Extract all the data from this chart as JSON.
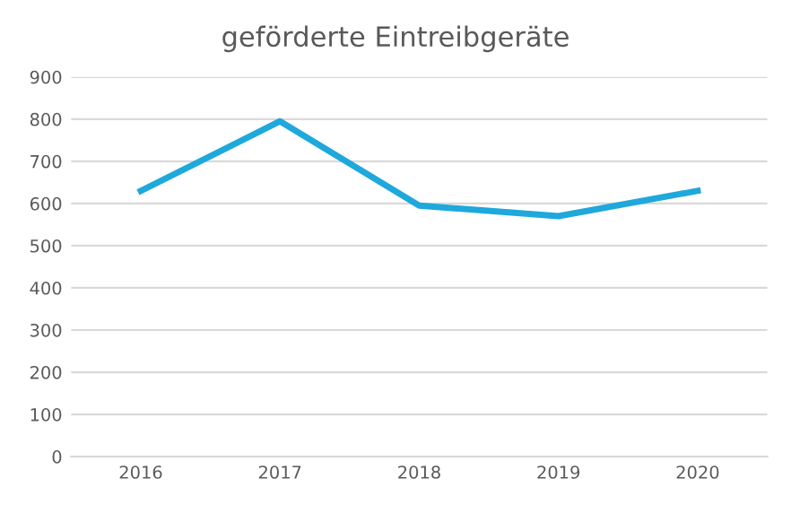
{
  "chart_data": {
    "type": "line",
    "title": "geförderte Eintreibgeräte",
    "categories": [
      "2016",
      "2017",
      "2018",
      "2019",
      "2020"
    ],
    "series": [
      {
        "color": "#1fa8dc",
        "values": [
          630,
          795,
          595,
          570,
          630
        ]
      }
    ],
    "ylim": [
      0,
      900
    ],
    "yticks": [
      0,
      100,
      200,
      300,
      400,
      500,
      600,
      700,
      800,
      900
    ],
    "grid": "y",
    "marker": "none",
    "line_style": "solid"
  }
}
